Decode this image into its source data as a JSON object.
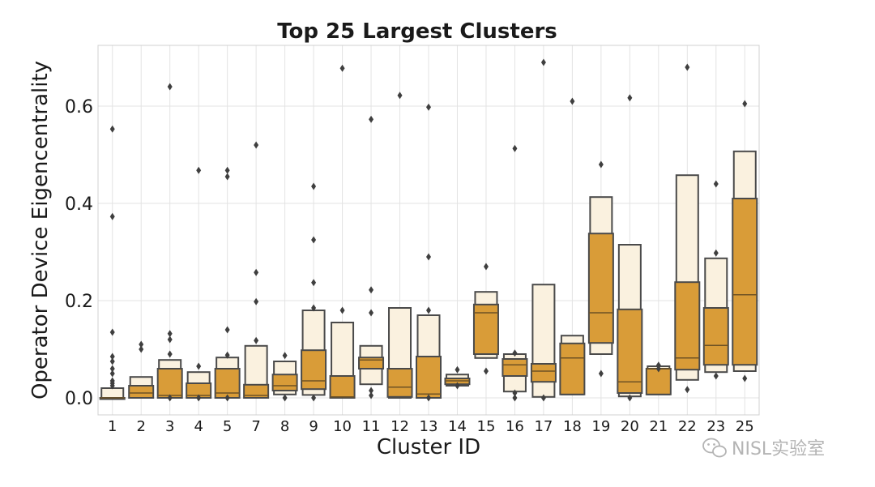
{
  "chart_data": {
    "type": "boxen",
    "title": "Top 25 Largest Clusters",
    "xlabel": "Cluster ID",
    "ylabel": "Operator Device Eigencentrality",
    "ylim": [
      -0.035,
      0.725
    ],
    "yticks": [
      0.0,
      0.2,
      0.4,
      0.6
    ],
    "ytick_labels": [
      "0.0",
      "0.2",
      "0.4",
      "0.6"
    ],
    "grid": true,
    "colors": {
      "inner": "#d99c38",
      "outer": "#faf1df",
      "edge": "#4a4a4a",
      "median": "#6e5224",
      "outlier": "#3f3f3f"
    },
    "categories": [
      "1",
      "2",
      "3",
      "4",
      "5",
      "7",
      "8",
      "9",
      "10",
      "11",
      "12",
      "13",
      "14",
      "15",
      "16",
      "17",
      "18",
      "19",
      "20",
      "21",
      "22",
      "23",
      "25"
    ],
    "clusters": [
      {
        "id": "1",
        "median": 0.0,
        "inner": [
          0.0,
          0.0
        ],
        "outer": [
          0.0,
          0.02
        ],
        "outliers": [
          0.553,
          0.373,
          0.135,
          0.085,
          0.075,
          0.06,
          0.05,
          0.035,
          0.03,
          0.025
        ]
      },
      {
        "id": "2",
        "median": 0.01,
        "inner": [
          0.0,
          0.025
        ],
        "outer": [
          0.0,
          0.043
        ],
        "outliers": [
          0.11,
          0.1
        ]
      },
      {
        "id": "3",
        "median": 0.005,
        "inner": [
          0.0,
          0.06
        ],
        "outer": [
          0.0,
          0.078
        ],
        "outliers": [
          0.64,
          0.132,
          0.12,
          0.09,
          0.0
        ]
      },
      {
        "id": "4",
        "median": 0.005,
        "inner": [
          0.0,
          0.03
        ],
        "outer": [
          0.0,
          0.053
        ],
        "outliers": [
          0.468,
          0.065,
          0.0
        ]
      },
      {
        "id": "5",
        "median": 0.01,
        "inner": [
          0.0,
          0.06
        ],
        "outer": [
          0.0,
          0.083
        ],
        "outliers": [
          0.468,
          0.455,
          0.14,
          0.088,
          0.0
        ]
      },
      {
        "id": "7",
        "median": 0.005,
        "inner": [
          0.0,
          0.027
        ],
        "outer": [
          0.0,
          0.107
        ],
        "outliers": [
          0.52,
          0.258,
          0.198,
          0.118
        ]
      },
      {
        "id": "8",
        "median": 0.025,
        "inner": [
          0.015,
          0.048
        ],
        "outer": [
          0.007,
          0.075
        ],
        "outliers": [
          0.087,
          0.0
        ]
      },
      {
        "id": "9",
        "median": 0.035,
        "inner": [
          0.018,
          0.098
        ],
        "outer": [
          0.006,
          0.18
        ],
        "outliers": [
          0.435,
          0.325,
          0.237,
          0.185,
          0.0
        ]
      },
      {
        "id": "10",
        "median": 0.002,
        "inner": [
          0.0,
          0.045
        ],
        "outer": [
          0.0,
          0.155
        ],
        "outliers": [
          0.678,
          0.18
        ]
      },
      {
        "id": "11",
        "median": 0.078,
        "inner": [
          0.06,
          0.083
        ],
        "outer": [
          0.028,
          0.107
        ],
        "outliers": [
          0.573,
          0.222,
          0.175,
          0.015,
          0.005
        ]
      },
      {
        "id": "12",
        "median": 0.022,
        "inner": [
          0.002,
          0.06
        ],
        "outer": [
          0.0,
          0.185
        ],
        "outliers": [
          0.622
        ]
      },
      {
        "id": "13",
        "median": 0.008,
        "inner": [
          0.0,
          0.085
        ],
        "outer": [
          0.0,
          0.17
        ],
        "outliers": [
          0.598,
          0.29,
          0.18,
          0.0
        ]
      },
      {
        "id": "14",
        "median": 0.035,
        "inner": [
          0.028,
          0.04
        ],
        "outer": [
          0.025,
          0.048
        ],
        "outliers": [
          0.058,
          0.025
        ]
      },
      {
        "id": "15",
        "median": 0.175,
        "inner": [
          0.09,
          0.192
        ],
        "outer": [
          0.082,
          0.218
        ],
        "outliers": [
          0.27,
          0.055
        ]
      },
      {
        "id": "16",
        "median": 0.068,
        "inner": [
          0.045,
          0.08
        ],
        "outer": [
          0.013,
          0.09
        ],
        "outliers": [
          0.513,
          0.092,
          0.01,
          0.0
        ]
      },
      {
        "id": "17",
        "median": 0.055,
        "inner": [
          0.033,
          0.07
        ],
        "outer": [
          0.002,
          0.233
        ],
        "outliers": [
          0.69,
          0.0
        ]
      },
      {
        "id": "18",
        "median": 0.082,
        "inner": [
          0.007,
          0.112
        ],
        "outer": [
          0.007,
          0.128
        ],
        "outliers": [
          0.61
        ]
      },
      {
        "id": "19",
        "median": 0.175,
        "inner": [
          0.113,
          0.338
        ],
        "outer": [
          0.09,
          0.413
        ],
        "outliers": [
          0.48,
          0.05
        ]
      },
      {
        "id": "20",
        "median": 0.033,
        "inner": [
          0.01,
          0.182
        ],
        "outer": [
          0.003,
          0.315
        ],
        "outliers": [
          0.617,
          0.0
        ]
      },
      {
        "id": "21",
        "median": 0.06,
        "inner": [
          0.007,
          0.06
        ],
        "outer": [
          0.007,
          0.065
        ],
        "outliers": [
          0.067,
          0.06
        ]
      },
      {
        "id": "22",
        "median": 0.082,
        "inner": [
          0.058,
          0.238
        ],
        "outer": [
          0.037,
          0.458
        ],
        "outliers": [
          0.68,
          0.017
        ]
      },
      {
        "id": "23",
        "median": 0.108,
        "inner": [
          0.068,
          0.185
        ],
        "outer": [
          0.053,
          0.287
        ],
        "outliers": [
          0.44,
          0.298,
          0.045
        ]
      },
      {
        "id": "25",
        "median": 0.212,
        "inner": [
          0.068,
          0.41
        ],
        "outer": [
          0.055,
          0.507
        ],
        "outliers": [
          0.605,
          0.04
        ]
      }
    ]
  },
  "watermark": {
    "text": "NISL实验室",
    "icon": "wechat-icon"
  }
}
